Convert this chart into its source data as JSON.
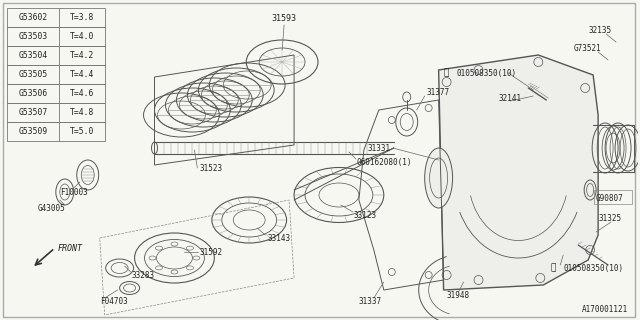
{
  "bg_color": "#f7f7f2",
  "line_color": "#555555",
  "text_color": "#222222",
  "diagram_id": "A170001121",
  "table_data": [
    [
      "G53602",
      "T=3.8"
    ],
    [
      "G53503",
      "T=4.0"
    ],
    [
      "G53504",
      "T=4.2"
    ],
    [
      "G53505",
      "T=4.4"
    ],
    [
      "G53506",
      "T=4.6"
    ],
    [
      "G53507",
      "T=4.8"
    ],
    [
      "G53509",
      "T=5.0"
    ]
  ]
}
